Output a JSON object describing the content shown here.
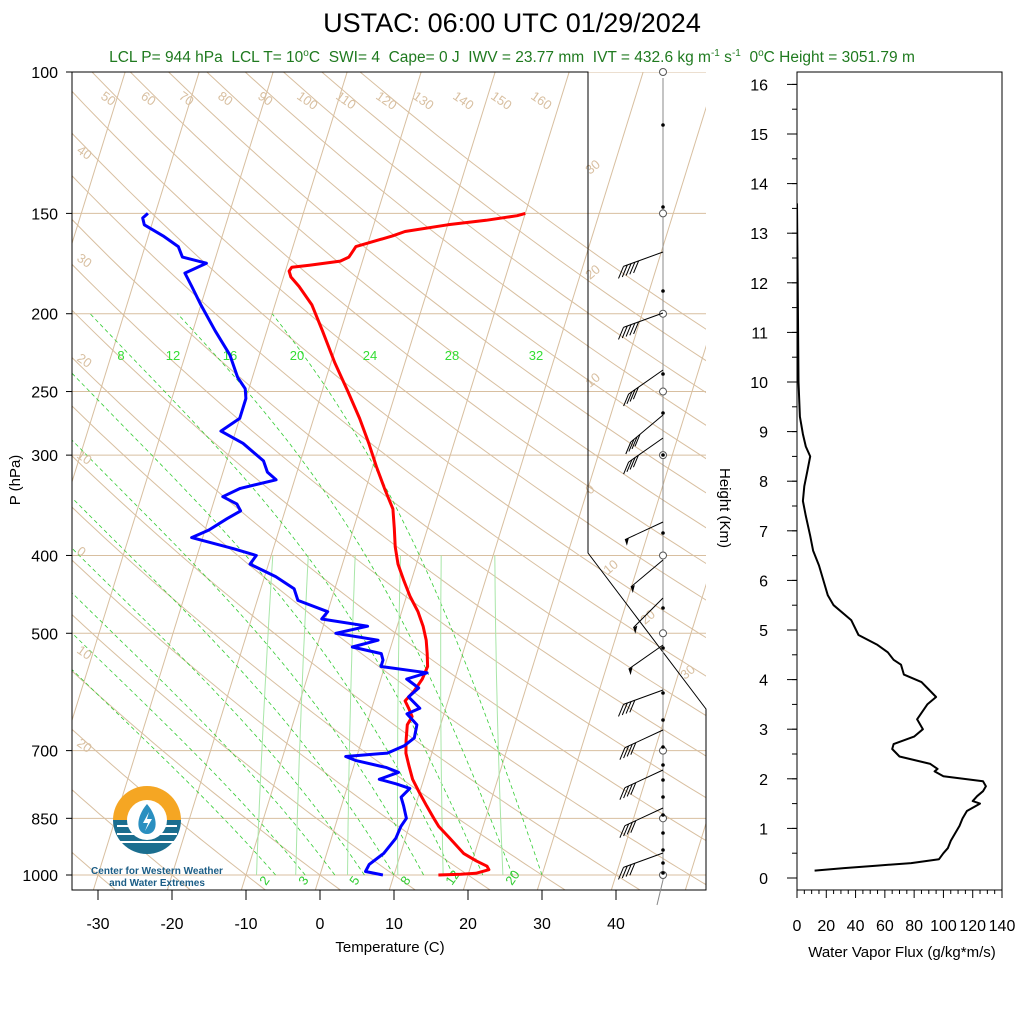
{
  "title": "USTAC: 06:00 UTC 01/29/2024",
  "subtitle": {
    "lcl_p": "LCL P= 944 hPa",
    "lcl_t_pre": "LCL T= 10",
    "lcl_t_post": "C",
    "swi": "SWI= 4",
    "cape": "Cape= 0 J",
    "iwv": "IWV = 23.77 mm",
    "ivt_pre": "IVT = 432.6 kg m",
    "ivt_exp1": "-1",
    "ivt_mid": " s",
    "ivt_exp2": "-1",
    "zero_pre": "0",
    "zero_post": "C Height = 3051.79 m",
    "deg": "o"
  },
  "logo": {
    "name": "cw3e-logo-icon",
    "line1": "Center for Western Weather",
    "line2": "and Water Extremes"
  },
  "colors": {
    "temperature": "#ff0000",
    "dewpoint": "#0000ff",
    "isotherm": "#d8bfa0",
    "mixing_ratio": "#33cc33",
    "subtitle": "#1f7a1f",
    "logo_orange": "#f5a623",
    "logo_teal": "#1b6e8f"
  },
  "chart_data": [
    {
      "type": "line",
      "name": "skew-t",
      "xlabel": "Temperature (C)",
      "ylabel": "P (hPa)",
      "x_ticks": [
        -30,
        -20,
        -10,
        0,
        10,
        20,
        30,
        40
      ],
      "y_ticks": [
        100,
        150,
        200,
        250,
        300,
        400,
        500,
        700,
        850,
        1000
      ],
      "y_scale": "log",
      "isotherm_labels": [
        "50",
        "60",
        "70",
        "80",
        "90",
        "100",
        "110",
        "120",
        "130",
        "140",
        "150",
        "160"
      ],
      "left_labels": [
        "40",
        "30",
        "20",
        "10",
        "0",
        "10",
        "20"
      ],
      "right_labels": [
        "30",
        "20",
        "10",
        "0",
        "10",
        "20",
        "30"
      ],
      "mixing_ratio_labels": [
        "8",
        "12",
        "16",
        "20",
        "24",
        "28",
        "32"
      ],
      "bottom_mr_labels": [
        "2",
        "3",
        "5",
        "8",
        "12",
        "20"
      ],
      "temperature_profile": [
        [
          1000,
          16
        ],
        [
          998,
          19
        ],
        [
          995,
          21
        ],
        [
          985,
          22.6
        ],
        [
          975,
          22.2
        ],
        [
          960,
          20.5
        ],
        [
          940,
          18.5
        ],
        [
          900,
          16
        ],
        [
          870,
          14
        ],
        [
          850,
          13
        ],
        [
          820,
          11.5
        ],
        [
          790,
          10
        ],
        [
          760,
          8.5
        ],
        [
          730,
          7.4
        ],
        [
          705,
          6.5
        ],
        [
          680,
          6
        ],
        [
          650,
          5.5
        ],
        [
          635,
          5.8
        ],
        [
          620,
          5
        ],
        [
          607,
          4.2
        ],
        [
          590,
          5
        ],
        [
          570,
          5.6
        ],
        [
          550,
          5.8
        ],
        [
          530,
          5.2
        ],
        [
          510,
          4.5
        ],
        [
          490,
          3.5
        ],
        [
          470,
          2.2
        ],
        [
          450,
          0.5
        ],
        [
          430,
          -1
        ],
        [
          410,
          -2.5
        ],
        [
          390,
          -3.6
        ],
        [
          370,
          -4.5
        ],
        [
          350,
          -5.5
        ],
        [
          330,
          -7.5
        ],
        [
          310,
          -9.5
        ],
        [
          290,
          -11.5
        ],
        [
          270,
          -13.8
        ],
        [
          250,
          -16.5
        ],
        [
          230,
          -19.5
        ],
        [
          210,
          -22.5
        ],
        [
          195,
          -25
        ],
        [
          185,
          -27.5
        ],
        [
          180,
          -29
        ],
        [
          177,
          -29.5
        ],
        [
          175,
          -29.3
        ],
        [
          174,
          -27
        ],
        [
          172,
          -23
        ],
        [
          170,
          -22
        ],
        [
          168,
          -21.8
        ],
        [
          165,
          -21.5
        ],
        [
          160,
          -17
        ],
        [
          158,
          -15.5
        ],
        [
          155,
          -10
        ],
        [
          153,
          -5
        ],
        [
          151,
          -1
        ],
        [
          150,
          0
        ]
      ],
      "dewpoint_profile": [
        [
          1000,
          8.5
        ],
        [
          990,
          6
        ],
        [
          970,
          6.2
        ],
        [
          940,
          7.7
        ],
        [
          900,
          8.7
        ],
        [
          870,
          8.9
        ],
        [
          850,
          9.3
        ],
        [
          820,
          8.4
        ],
        [
          800,
          7.7
        ],
        [
          780,
          8.5
        ],
        [
          770,
          6.5
        ],
        [
          760,
          4
        ],
        [
          745,
          6.3
        ],
        [
          735,
          4.5
        ],
        [
          720,
          0
        ],
        [
          712,
          -1.5
        ],
        [
          705,
          4
        ],
        [
          690,
          6
        ],
        [
          675,
          7
        ],
        [
          650,
          6.8
        ],
        [
          630,
          5
        ],
        [
          620,
          6.5
        ],
        [
          600,
          4.5
        ],
        [
          585,
          5.5
        ],
        [
          570,
          3.5
        ],
        [
          560,
          6
        ],
        [
          550,
          -0.5
        ],
        [
          540,
          -0.5
        ],
        [
          530,
          -1
        ],
        [
          520,
          -5.2
        ],
        [
          510,
          -2
        ],
        [
          500,
          -8
        ],
        [
          490,
          -4
        ],
        [
          480,
          -10.5
        ],
        [
          470,
          -10
        ],
        [
          455,
          -14.5
        ],
        [
          440,
          -15.5
        ],
        [
          425,
          -18.5
        ],
        [
          410,
          -22.5
        ],
        [
          400,
          -22
        ],
        [
          392,
          -25.5
        ],
        [
          380,
          -31.5
        ],
        [
          372,
          -29.5
        ],
        [
          360,
          -27.5
        ],
        [
          352,
          -26
        ],
        [
          345,
          -26.8
        ],
        [
          338,
          -29
        ],
        [
          330,
          -27
        ],
        [
          322,
          -22.5
        ],
        [
          315,
          -24
        ],
        [
          305,
          -25
        ],
        [
          290,
          -28.5
        ],
        [
          280,
          -32
        ],
        [
          270,
          -30
        ],
        [
          255,
          -30
        ],
        [
          248,
          -30.5
        ],
        [
          240,
          -32
        ],
        [
          225,
          -34
        ],
        [
          210,
          -37
        ],
        [
          195,
          -40
        ],
        [
          185,
          -42
        ],
        [
          178,
          -43.5
        ],
        [
          173,
          -41
        ],
        [
          170,
          -44.5
        ],
        [
          165,
          -45.5
        ],
        [
          160,
          -48
        ],
        [
          155,
          -51
        ],
        [
          152,
          -51.5
        ],
        [
          150,
          -51
        ]
      ]
    },
    {
      "type": "line",
      "name": "water-vapor-flux",
      "xlabel": "Water Vapor Flux (g/kg*m/s)",
      "ylabel": "Height (Km)",
      "x_ticks": [
        0,
        20,
        40,
        60,
        80,
        100,
        120,
        140
      ],
      "xlim": [
        0,
        140
      ],
      "y_ticks": [
        0,
        1,
        2,
        3,
        4,
        5,
        6,
        7,
        8,
        9,
        10,
        11,
        12,
        13,
        14,
        15,
        16
      ],
      "ylim": [
        -0.3,
        16.3
      ],
      "profile": [
        [
          0.15,
          12
        ],
        [
          0.2,
          32
        ],
        [
          0.25,
          55
        ],
        [
          0.3,
          78
        ],
        [
          0.38,
          97
        ],
        [
          0.5,
          100
        ],
        [
          0.6,
          103
        ],
        [
          0.75,
          105
        ],
        [
          0.9,
          108
        ],
        [
          1.05,
          111
        ],
        [
          1.2,
          113
        ],
        [
          1.35,
          116
        ],
        [
          1.45,
          122
        ],
        [
          1.5,
          125
        ],
        [
          1.55,
          120
        ],
        [
          1.65,
          123
        ],
        [
          1.75,
          127
        ],
        [
          1.85,
          129
        ],
        [
          1.95,
          127
        ],
        [
          2.05,
          100
        ],
        [
          2.15,
          94
        ],
        [
          2.2,
          96
        ],
        [
          2.3,
          91
        ],
        [
          2.45,
          70
        ],
        [
          2.6,
          65
        ],
        [
          2.7,
          66
        ],
        [
          2.85,
          80
        ],
        [
          3.0,
          86
        ],
        [
          3.2,
          82
        ],
        [
          3.5,
          89
        ],
        [
          3.65,
          95
        ],
        [
          3.8,
          90
        ],
        [
          3.95,
          85
        ],
        [
          4.1,
          73
        ],
        [
          4.3,
          71
        ],
        [
          4.4,
          66
        ],
        [
          4.55,
          62
        ],
        [
          4.7,
          55
        ],
        [
          4.9,
          42
        ],
        [
          5.2,
          37
        ],
        [
          5.5,
          25
        ],
        [
          5.7,
          21
        ],
        [
          6.0,
          18
        ],
        [
          6.3,
          15
        ],
        [
          6.6,
          11
        ],
        [
          6.9,
          9
        ],
        [
          7.3,
          6
        ],
        [
          7.6,
          4
        ],
        [
          7.9,
          5
        ],
        [
          8.2,
          7
        ],
        [
          8.5,
          9
        ],
        [
          8.7,
          6
        ],
        [
          8.95,
          4
        ],
        [
          9.3,
          2
        ],
        [
          10,
          1
        ],
        [
          12,
          0.5
        ],
        [
          13.6,
          0
        ]
      ]
    }
  ],
  "winds": {
    "note": "barbs",
    "levels": [
      150,
      175,
      200,
      225,
      250,
      275,
      300,
      350,
      375,
      400,
      450,
      500,
      550,
      600,
      650,
      700,
      750,
      800,
      850,
      900,
      950
    ]
  }
}
